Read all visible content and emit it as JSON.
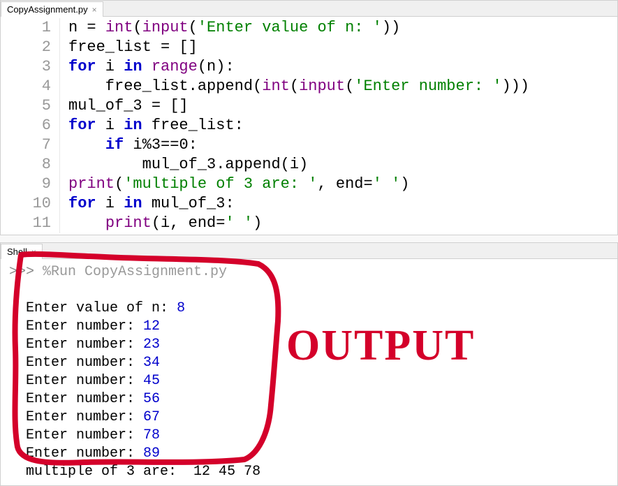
{
  "editor": {
    "tab_name": "CopyAssignment.py",
    "lines": [
      {
        "n": "1",
        "html": "n = <span class='builtin'>int</span>(<span class='builtin'>input</span>(<span class='str'>'Enter value of n: '</span>))"
      },
      {
        "n": "2",
        "html": "free_list = []"
      },
      {
        "n": "3",
        "html": "<span class='kw'>for</span> i <span class='kw'>in</span> <span class='builtin'>range</span>(n):"
      },
      {
        "n": "4",
        "html": "    free_list.append(<span class='builtin'>int</span>(<span class='builtin'>input</span>(<span class='str'>'Enter number: '</span>)))"
      },
      {
        "n": "5",
        "html": "mul_of_3 = []"
      },
      {
        "n": "6",
        "html": "<span class='kw'>for</span> i <span class='kw'>in</span> free_list:"
      },
      {
        "n": "7",
        "html": "    <span class='kw'>if</span> i%<span class='num'>3</span>==<span class='num'>0</span>:"
      },
      {
        "n": "8",
        "html": "        mul_of_3.append(i)"
      },
      {
        "n": "9",
        "html": "<span class='builtin'>print</span>(<span class='str'>'multiple of 3 are: '</span>, end=<span class='str'>' '</span>)"
      },
      {
        "n": "10",
        "html": "<span class='kw'>for</span> i <span class='kw'>in</span> mul_of_3:"
      },
      {
        "n": "11",
        "html": "    <span class='builtin'>print</span>(i, end=<span class='str'>' '</span>)"
      }
    ]
  },
  "shell": {
    "tab_name": "Shell",
    "prompt": ">>>",
    "run_cmd": "%Run CopyAssignment.py",
    "io": [
      {
        "text": "Enter value of n: ",
        "val": "8"
      },
      {
        "text": "Enter number: ",
        "val": "12"
      },
      {
        "text": "Enter number: ",
        "val": "23"
      },
      {
        "text": "Enter number: ",
        "val": "34"
      },
      {
        "text": "Enter number: ",
        "val": "45"
      },
      {
        "text": "Enter number: ",
        "val": "56"
      },
      {
        "text": "Enter number: ",
        "val": "67"
      },
      {
        "text": "Enter number: ",
        "val": "78"
      },
      {
        "text": "Enter number: ",
        "val": "89"
      }
    ],
    "result_line": "multiple of 3 are:  12 45 78"
  },
  "annotation": {
    "label": "OUTPUT",
    "stroke_color": "#d4002a",
    "stroke_width": 8
  }
}
